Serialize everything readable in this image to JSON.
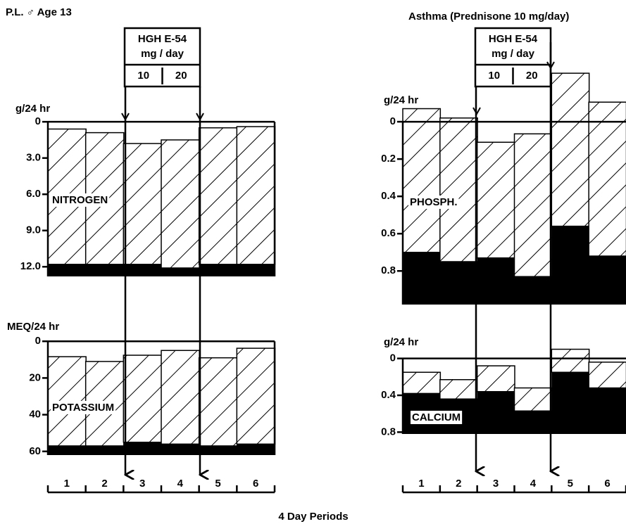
{
  "header": {
    "left": "P.L. ♂ Age 13",
    "right": "Asthma  (Prednisone 10 mg/day)"
  },
  "treatment": {
    "label": "HGH E-54",
    "unit": "mg / day",
    "doses": [
      10,
      20
    ]
  },
  "periods": [
    "1",
    "2",
    "3",
    "4",
    "5",
    "6"
  ],
  "xlabel": "4 Day Periods",
  "chart_data": [
    {
      "type": "balance",
      "ylabel": "g/24 hr",
      "label": "NITROGEN",
      "ylim": [
        -0.3,
        12.8
      ],
      "yticks": [
        0,
        {
          "value": 3,
          "label": "3.0"
        },
        {
          "value": 6,
          "label": "6.0"
        },
        {
          "value": 9,
          "label": "9.0"
        },
        {
          "value": 12,
          "label": "12.0"
        }
      ],
      "series": [
        {
          "color": "#000000",
          "pattern": "hatch",
          "values": [
            0.6,
            0.9,
            1.8,
            1.5,
            0.5,
            0.4
          ]
        },
        {
          "color": "#000000",
          "pattern": "solid",
          "values": [
            11.8,
            11.8,
            11.8,
            12.1,
            11.8,
            11.8
          ]
        }
      ]
    },
    {
      "type": "balance",
      "ylabel": "MEQ/24 hr",
      "label": "POTASSIUM",
      "ylim": [
        -2,
        62
      ],
      "yticks": [
        0,
        20,
        40,
        60
      ],
      "series": [
        {
          "color": "#000000",
          "pattern": "hatch",
          "values": [
            8.4,
            11,
            7.6,
            5,
            9,
            3.8
          ]
        },
        {
          "color": "#000000",
          "pattern": "solid",
          "values": [
            57,
            57,
            55,
            56,
            57,
            56
          ]
        }
      ]
    },
    {
      "type": "balance",
      "ylabel": "g/24 hr",
      "label": "PHOSPH.",
      "ylim": [
        -0.3,
        0.98
      ],
      "yticks": [
        0,
        0.2,
        0.4,
        0.6,
        0.8
      ],
      "series": [
        {
          "color": "#000000",
          "pattern": "hatch",
          "values": [
            -0.07,
            -0.02,
            0.11,
            0.065,
            -0.26,
            -0.105
          ]
        },
        {
          "color": "#000000",
          "pattern": "solid",
          "values": [
            0.7,
            0.75,
            0.73,
            0.83,
            0.56,
            0.72
          ]
        }
      ]
    },
    {
      "type": "balance",
      "ylabel": "g/24 hr",
      "label": "CALCIUM",
      "ylim": [
        -0.15,
        0.82
      ],
      "yticks": [
        0,
        0.4,
        0.8
      ],
      "series": [
        {
          "color": "#000000",
          "pattern": "hatch",
          "values": [
            0.15,
            0.23,
            0.08,
            0.32,
            -0.1,
            0.04
          ]
        },
        {
          "color": "#000000",
          "pattern": "solid",
          "values": [
            0.38,
            0.44,
            0.36,
            0.57,
            0.15,
            0.32
          ]
        }
      ]
    }
  ]
}
